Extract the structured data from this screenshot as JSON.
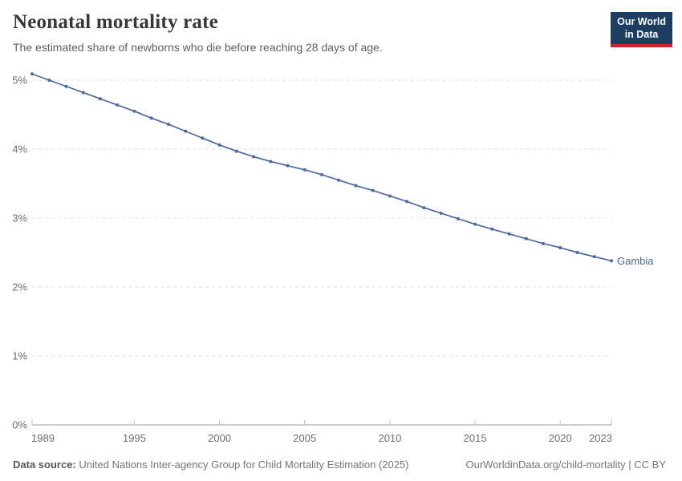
{
  "header": {
    "title": "Neonatal mortality rate",
    "subtitle": "The estimated share of newborns who die before reaching 28 days of age.",
    "logo": {
      "line1": "Our World",
      "line2": "in Data"
    }
  },
  "colors": {
    "series": "#4c6a9c",
    "logo_bg": "#1d3d63",
    "logo_accent": "#cf2030",
    "gridline": "#e2e2e2",
    "axis_line": "#9a9a9a",
    "tick_mark": "#c4c4c4",
    "tick_label": "#6e6e6e"
  },
  "chart_data": {
    "type": "line",
    "title": "Neonatal mortality rate",
    "unit": "%",
    "xlabel": "",
    "ylabel": "",
    "xlim": [
      1989,
      2023
    ],
    "ylim": [
      0,
      5
    ],
    "grid": "horizontal-dashed",
    "legend_position": "end-of-line-label",
    "x_ticks": [
      1989,
      1995,
      2000,
      2005,
      2010,
      2015,
      2020,
      2023
    ],
    "y_ticks": [
      {
        "value": 0,
        "label": "0%"
      },
      {
        "value": 1,
        "label": "1%"
      },
      {
        "value": 2,
        "label": "2%"
      },
      {
        "value": 3,
        "label": "3%"
      },
      {
        "value": 4,
        "label": "4%"
      },
      {
        "value": 5,
        "label": "5%"
      }
    ],
    "series": [
      {
        "name": "Gambia",
        "color": "#4c6a9c",
        "x": [
          1989,
          1990,
          1991,
          1992,
          1993,
          1994,
          1995,
          1996,
          1997,
          1998,
          1999,
          2000,
          2001,
          2002,
          2003,
          2004,
          2005,
          2006,
          2007,
          2008,
          2009,
          2010,
          2011,
          2012,
          2013,
          2014,
          2015,
          2016,
          2017,
          2018,
          2019,
          2020,
          2021,
          2022,
          2023
        ],
        "values": [
          5.09,
          5.0,
          4.91,
          4.82,
          4.73,
          4.64,
          4.55,
          4.45,
          4.36,
          4.26,
          4.16,
          4.06,
          3.97,
          3.89,
          3.82,
          3.76,
          3.7,
          3.63,
          3.55,
          3.47,
          3.4,
          3.32,
          3.24,
          3.15,
          3.07,
          2.99,
          2.91,
          2.84,
          2.77,
          2.7,
          2.63,
          2.57,
          2.5,
          2.44,
          2.38
        ]
      }
    ]
  },
  "footer": {
    "source_label": "Data source:",
    "source_text": "United Nations Inter-agency Group for Child Mortality Estimation (2025)",
    "attribution": "OurWorldinData.org/child-mortality | CC BY"
  }
}
